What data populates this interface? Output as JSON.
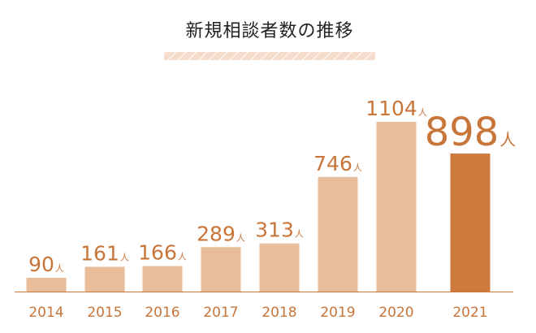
{
  "chart_data": {
    "type": "bar",
    "title": "新規相談者数の推移",
    "categories": [
      "2014",
      "2015",
      "2016",
      "2017",
      "2018",
      "2019",
      "2020",
      "2021"
    ],
    "values": [
      90,
      161,
      166,
      289,
      313,
      746,
      1104,
      898
    ],
    "value_labels": [
      "90",
      "161",
      "166",
      "289",
      "313",
      "746",
      "1104",
      "898"
    ],
    "unit": "人",
    "highlight_index": 7,
    "colors": {
      "bar": "#e7bd9b",
      "highlight": "#cf7a3e",
      "text": "#c8753a",
      "axis": "#c8753a",
      "title_band": "#f5dccb"
    },
    "ylim": [
      0,
      1104
    ],
    "grid": false
  }
}
